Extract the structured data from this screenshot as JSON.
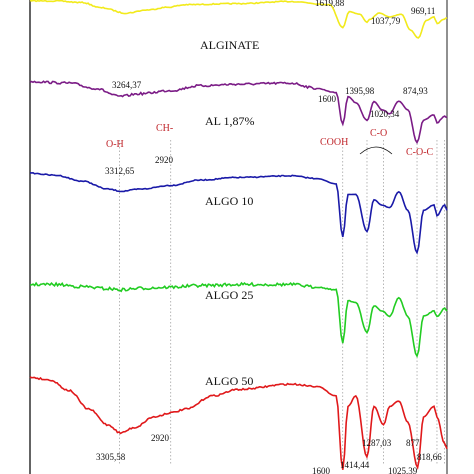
{
  "chart_data": {
    "type": "line",
    "series": [
      {
        "name": "",
        "color": "#000000",
        "points": [
          [
            1800,
            0.985
          ],
          [
            1619.88,
            0.945
          ],
          [
            1500,
            0.99
          ],
          [
            1300,
            0.97
          ],
          [
            1100,
            0.96
          ],
          [
            1037.79,
            0.928
          ],
          [
            1000,
            0.955
          ],
          [
            969.11,
            0.935
          ],
          [
            900,
            0.975
          ],
          [
            820,
            0.955
          ]
        ],
        "labels": [
          "1619,88",
          "1037,79",
          "969,11"
        ]
      },
      {
        "name": "ALGINATE",
        "color": "#f2ea1c",
        "points": [
          [
            4000,
            0.885
          ],
          [
            3800,
            0.885
          ],
          [
            3600,
            0.882
          ],
          [
            3450,
            0.872
          ],
          [
            3264.37,
            0.862
          ],
          [
            3100,
            0.868
          ],
          [
            2950,
            0.873
          ],
          [
            2800,
            0.878
          ],
          [
            2400,
            0.88
          ],
          [
            2000,
            0.884
          ],
          [
            1700,
            0.878
          ],
          [
            1600,
            0.835
          ],
          [
            1550,
            0.865
          ],
          [
            1470,
            0.86
          ],
          [
            1414,
            0.845
          ],
          [
            1395.98,
            0.85
          ],
          [
            1320,
            0.862
          ],
          [
            1240,
            0.855
          ],
          [
            1150,
            0.86
          ],
          [
            1080,
            0.83
          ],
          [
            1020.34,
            0.815
          ],
          [
            960,
            0.848
          ],
          [
            900,
            0.855
          ],
          [
            874.93,
            0.842
          ],
          [
            830,
            0.85
          ],
          [
            800,
            0.853
          ]
        ],
        "labels": [
          "3264,37",
          "1600",
          "1395,98",
          "1020,34",
          "874,93"
        ]
      },
      {
        "name": "AL 1,87%",
        "color": "#7b1c86",
        "points": [
          [
            4000,
            0.733
          ],
          [
            3700,
            0.73
          ],
          [
            3500,
            0.72
          ],
          [
            3312.65,
            0.705
          ],
          [
            3150,
            0.71
          ],
          [
            2920,
            0.716
          ],
          [
            2700,
            0.725
          ],
          [
            2400,
            0.728
          ],
          [
            2000,
            0.73
          ],
          [
            1800,
            0.72
          ],
          [
            1650,
            0.712
          ],
          [
            1600,
            0.652
          ],
          [
            1560,
            0.705
          ],
          [
            1500,
            0.693
          ],
          [
            1414,
            0.66
          ],
          [
            1360,
            0.695
          ],
          [
            1300,
            0.68
          ],
          [
            1240,
            0.672
          ],
          [
            1170,
            0.696
          ],
          [
            1100,
            0.68
          ],
          [
            1030,
            0.618
          ],
          [
            980,
            0.66
          ],
          [
            900,
            0.67
          ],
          [
            877,
            0.655
          ],
          [
            818,
            0.668
          ],
          [
            800,
            0.665
          ]
        ],
        "labels": [
          "3312,65",
          "2920"
        ],
        "annotations": [
          "O-H",
          "CH-",
          "COOH",
          "C-O",
          "C-O-C"
        ]
      },
      {
        "name": "ALGO 10",
        "color": "#1a1aa8",
        "points": [
          [
            4000,
            0.56
          ],
          [
            3800,
            0.556
          ],
          [
            3600,
            0.545
          ],
          [
            3400,
            0.53
          ],
          [
            3300,
            0.526
          ],
          [
            3150,
            0.53
          ],
          [
            2920,
            0.537
          ],
          [
            2700,
            0.547
          ],
          [
            2400,
            0.552
          ],
          [
            2000,
            0.555
          ],
          [
            1800,
            0.55
          ],
          [
            1650,
            0.54
          ],
          [
            1600,
            0.44
          ],
          [
            1560,
            0.52
          ],
          [
            1500,
            0.52
          ],
          [
            1414,
            0.45
          ],
          [
            1360,
            0.51
          ],
          [
            1300,
            0.5
          ],
          [
            1240,
            0.495
          ],
          [
            1170,
            0.525
          ],
          [
            1100,
            0.49
          ],
          [
            1030,
            0.41
          ],
          [
            980,
            0.49
          ],
          [
            900,
            0.5
          ],
          [
            877,
            0.48
          ],
          [
            818,
            0.5
          ],
          [
            800,
            0.49
          ]
        ],
        "labels": []
      },
      {
        "name": "ALGO 25",
        "color": "#22cc22",
        "points": [
          [
            4000,
            0.35
          ],
          [
            3800,
            0.35
          ],
          [
            3600,
            0.346
          ],
          [
            3400,
            0.342
          ],
          [
            3300,
            0.34
          ],
          [
            3150,
            0.343
          ],
          [
            2920,
            0.345
          ],
          [
            2700,
            0.348
          ],
          [
            2400,
            0.35
          ],
          [
            2000,
            0.35
          ],
          [
            1800,
            0.345
          ],
          [
            1650,
            0.34
          ],
          [
            1600,
            0.24
          ],
          [
            1560,
            0.32
          ],
          [
            1500,
            0.316
          ],
          [
            1414,
            0.26
          ],
          [
            1360,
            0.31
          ],
          [
            1300,
            0.3
          ],
          [
            1240,
            0.29
          ],
          [
            1170,
            0.325
          ],
          [
            1100,
            0.29
          ],
          [
            1030,
            0.215
          ],
          [
            980,
            0.29
          ],
          [
            900,
            0.3
          ],
          [
            877,
            0.29
          ],
          [
            818,
            0.305
          ],
          [
            800,
            0.3
          ]
        ],
        "labels": []
      },
      {
        "name": "ALGO 50",
        "color": "#e0191b",
        "points": [
          [
            4000,
            0.175
          ],
          [
            3850,
            0.17
          ],
          [
            3700,
            0.15
          ],
          [
            3550,
            0.115
          ],
          [
            3400,
            0.085
          ],
          [
            3305.58,
            0.07
          ],
          [
            3200,
            0.08
          ],
          [
            3050,
            0.1
          ],
          [
            2920,
            0.108
          ],
          [
            2800,
            0.115
          ],
          [
            2600,
            0.14
          ],
          [
            2400,
            0.152
          ],
          [
            2000,
            0.162
          ],
          [
            1800,
            0.158
          ],
          [
            1650,
            0.14
          ],
          [
            1600,
            0.0
          ],
          [
            1560,
            0.12
          ],
          [
            1500,
            0.14
          ],
          [
            1414.44,
            0.025
          ],
          [
            1360,
            0.12
          ],
          [
            1287.03,
            0.085
          ],
          [
            1240,
            0.12
          ],
          [
            1170,
            0.13
          ],
          [
            1100,
            0.09
          ],
          [
            1025.39,
            0.005
          ],
          [
            980,
            0.1
          ],
          [
            900,
            0.12
          ],
          [
            877,
            0.1
          ],
          [
            818.66,
            0.05
          ],
          [
            800,
            0.04
          ]
        ],
        "labels": [
          "3305,58",
          "2920",
          "1600",
          "1414,44",
          "1287,03",
          "1025,39",
          "877",
          "818,66"
        ]
      }
    ],
    "reference_lines": [
      3312.65,
      2920,
      1600,
      1414,
      1287,
      1030,
      877,
      818
    ]
  }
}
